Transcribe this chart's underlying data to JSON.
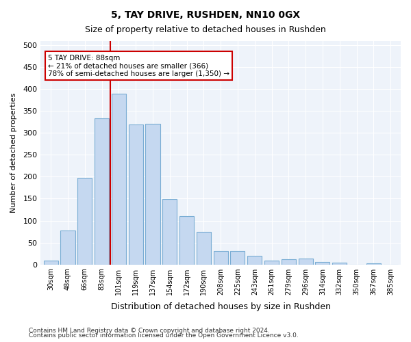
{
  "title1": "5, TAY DRIVE, RUSHDEN, NN10 0GX",
  "title2": "Size of property relative to detached houses in Rushden",
  "xlabel": "Distribution of detached houses by size in Rushden",
  "ylabel": "Number of detached properties",
  "bar_labels": [
    "30sqm",
    "48sqm",
    "66sqm",
    "83sqm",
    "101sqm",
    "119sqm",
    "137sqm",
    "154sqm",
    "172sqm",
    "190sqm",
    "208sqm",
    "225sqm",
    "243sqm",
    "261sqm",
    "279sqm",
    "296sqm",
    "314sqm",
    "332sqm",
    "350sqm",
    "367sqm",
    "385sqm"
  ],
  "bar_values": [
    8,
    78,
    197,
    333,
    390,
    320,
    321,
    149,
    110,
    74,
    30,
    30,
    20,
    8,
    12,
    13,
    6,
    4,
    0,
    3,
    0
  ],
  "bar_color": "#c5d8f0",
  "bar_edge_color": "#7aadd4",
  "property_line_x": 3.5,
  "annotation_text": "5 TAY DRIVE: 88sqm\n← 21% of detached houses are smaller (366)\n78% of semi-detached houses are larger (1,350) →",
  "annotation_box_color": "#ffffff",
  "annotation_edge_color": "#cc0000",
  "vline_color": "#cc0000",
  "ylim": [
    0,
    510
  ],
  "yticks": [
    0,
    50,
    100,
    150,
    200,
    250,
    300,
    350,
    400,
    450,
    500
  ],
  "background_color": "#eef3fa",
  "grid_color": "#ffffff",
  "footer_line1": "Contains HM Land Registry data © Crown copyright and database right 2024.",
  "footer_line2": "Contains public sector information licensed under the Open Government Licence v3.0."
}
